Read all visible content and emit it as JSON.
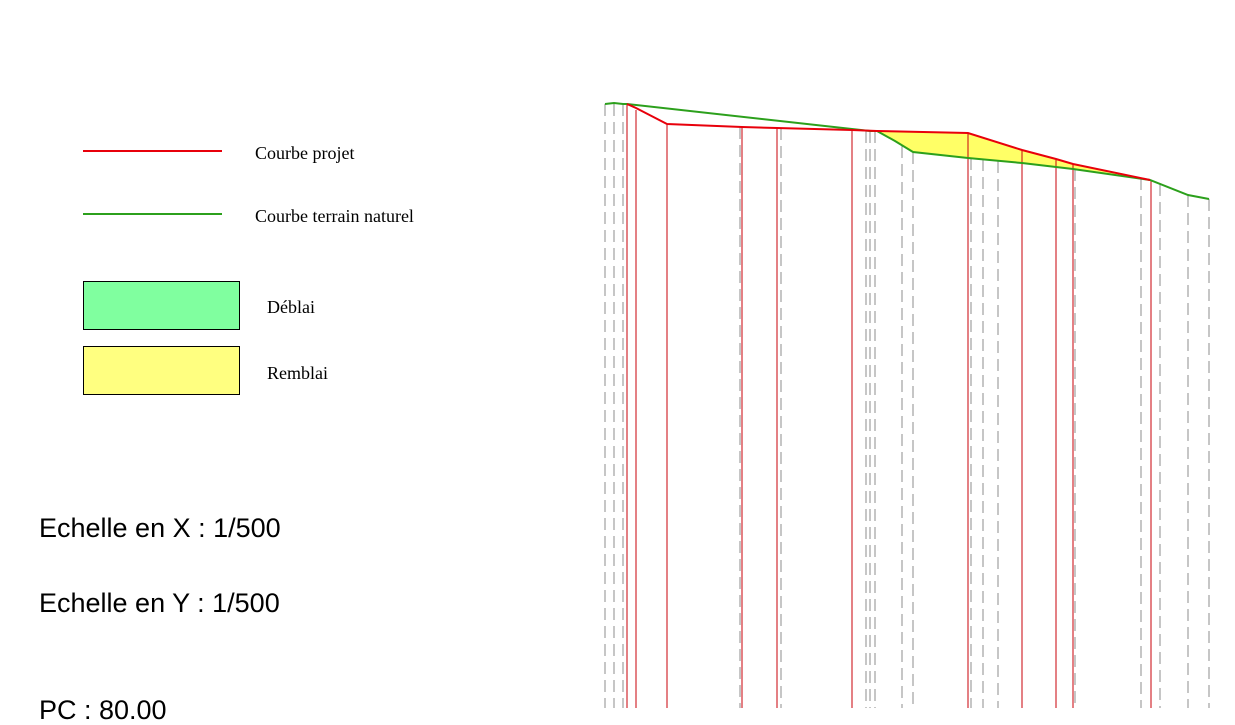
{
  "legend": {
    "projet": {
      "label": "Courbe projet",
      "color": "#e8000b"
    },
    "terrain": {
      "label": "Courbe terrain naturel",
      "color": "#2ca01c"
    },
    "deblai": {
      "label": "Déblai",
      "color": "#80ff9f"
    },
    "remblai": {
      "label": "Remblai",
      "color": "#ffff80"
    }
  },
  "scale": {
    "x_label": "Echelle en X",
    "x_value": "1/500",
    "y_label": "Echelle en Y",
    "y_value": "1/500"
  },
  "pc_label": "PC : 80.00",
  "colors": {
    "projet": "#e8000b",
    "terrain": "#2ca01c",
    "remblai_fill": "#ffff66",
    "deblai_fill": "#80ff9f",
    "station_solid": "#c8000a",
    "station_dashed": "#8c8c8c"
  }
}
